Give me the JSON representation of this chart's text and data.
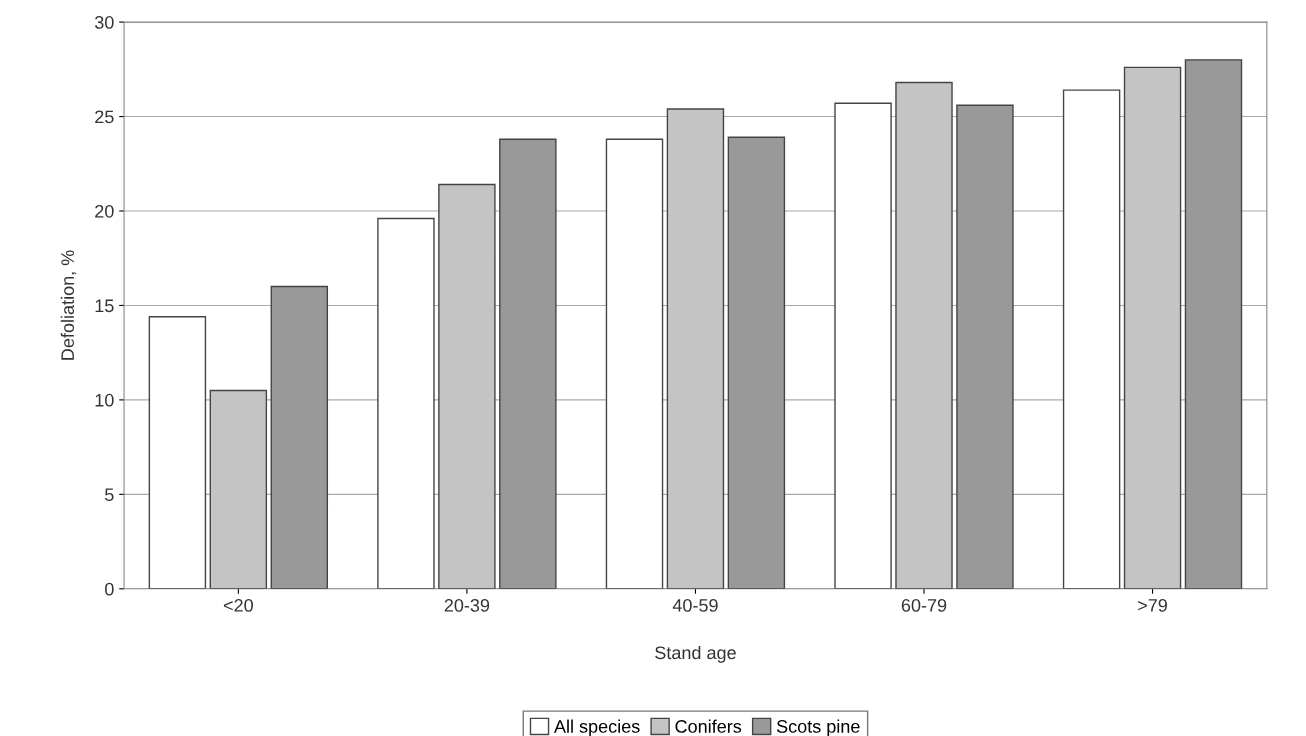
{
  "chart_data": {
    "type": "bar",
    "xlabel": "Stand age",
    "ylabel": "Defoliation, %",
    "categories": [
      "<20",
      "20-39",
      "40-59",
      "60-79",
      ">79"
    ],
    "series": [
      {
        "name": "All species",
        "color": "#ffffff",
        "values": [
          14.4,
          19.6,
          23.8,
          25.7,
          26.4
        ]
      },
      {
        "name": "Conifers",
        "color": "#c4c4c4",
        "values": [
          10.5,
          21.4,
          25.4,
          26.8,
          27.6
        ]
      },
      {
        "name": "Scots pine",
        "color": "#999999",
        "values": [
          16.0,
          23.8,
          23.9,
          25.6,
          28.0
        ]
      }
    ],
    "ylim": [
      0,
      30
    ],
    "yticks": [
      0,
      5,
      10,
      15,
      20,
      25,
      30
    ],
    "grid": "y",
    "legend": "bottom"
  }
}
